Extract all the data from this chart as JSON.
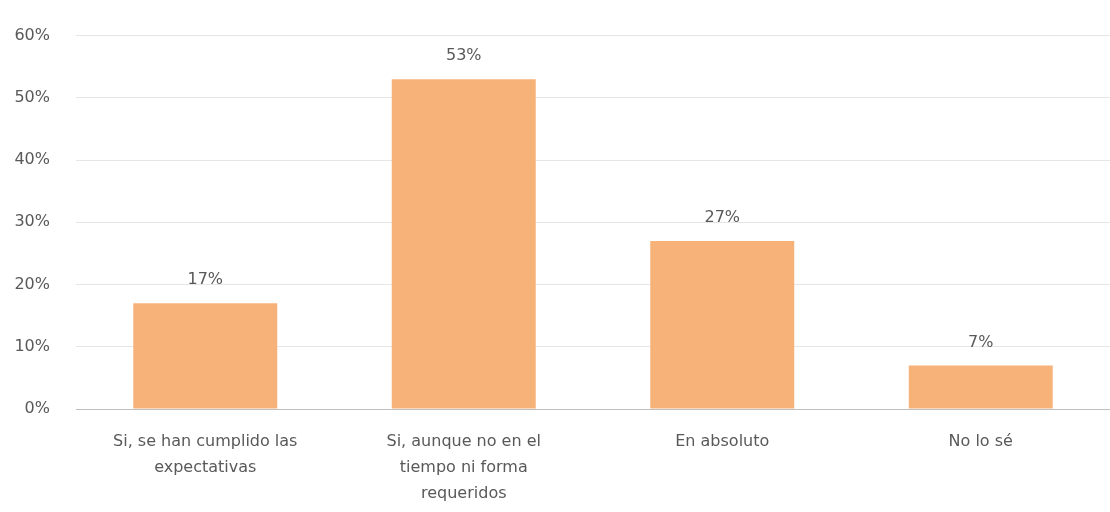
{
  "chart_data": {
    "type": "bar",
    "categories": [
      "Si, se han cumplido las expectativas",
      "Si, aunque no en el tiempo ni forma requeridos",
      "En absoluto",
      "No lo sé"
    ],
    "values": [
      17,
      53,
      27,
      7
    ],
    "color": "#f7b27a",
    "value_labels": [
      "17%",
      "53%",
      "27%",
      "7%"
    ],
    "ylim": [
      0,
      60
    ],
    "yticks": [
      {
        "value": 0,
        "label": "0%"
      },
      {
        "value": 10,
        "label": "10%"
      },
      {
        "value": 20,
        "label": "20%"
      },
      {
        "value": 30,
        "label": "30%"
      },
      {
        "value": 40,
        "label": "40%"
      },
      {
        "value": 50,
        "label": "50%"
      },
      {
        "value": 60,
        "label": "60%"
      }
    ],
    "grid": "y"
  }
}
